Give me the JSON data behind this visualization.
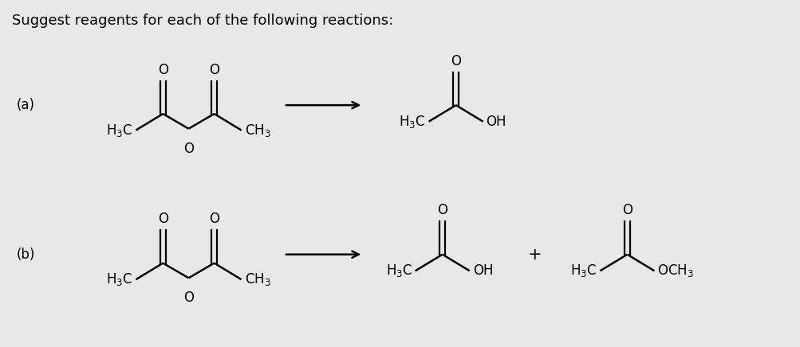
{
  "background_color": "#e8e8e8",
  "title_text": "Suggest reagents for each of the following reactions:",
  "title_fontsize": 13,
  "title_fontweight": "normal",
  "label_a": "(a)",
  "label_b": "(b)",
  "line_color": "#000000",
  "line_width": 1.8,
  "text_fontsize": 12,
  "sub_fontsize": 9,
  "arrow_color": "#000000"
}
